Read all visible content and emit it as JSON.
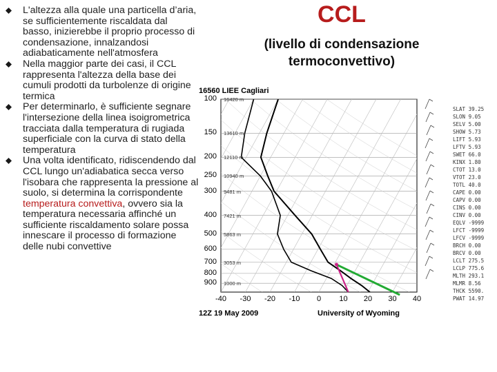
{
  "slide": {
    "title": "CCL",
    "subtitle_line1": "(livello di condensazione",
    "subtitle_line2": "termoconvettivo)",
    "bullets": [
      "L'altezza alla quale una particella d’aria, se sufficientemente riscaldata dal basso, inizierebbe il proprio processo di condensazione, innalzandosi adiabaticamente nell'atmosfera",
      "Nella maggior parte dei casi, il CCL rappresenta l'altezza della base dei cumuli prodotti da turbolenze di origine termica",
      "Per determinarlo, è sufficiente segnare l'intersezione della linea isoigrometrica tracciata dalla temperatura di rugiada superficiale con la curva di stato della temperatura"
    ],
    "bullet4_before": "Una volta identificato, ridiscendendo dal CCL lungo un'adiabatica secca verso l'isobara che rappresenta la pressione al suolo, si determina la corrispondente ",
    "bullet4_highlight": "temperatura convettiva",
    "bullet4_after": ", ovvero sia la temperatura necessaria affinché un sufficiente riscaldamento solare possa innescare il processo di formazione delle nubi convettive",
    "colors": {
      "title": "#b71c1c",
      "highlight": "#b71c1c",
      "bullet": "#1a1a1a",
      "dry_adiabat": "#22aa33",
      "parcel": "#cc2288"
    }
  },
  "chart_data": {
    "type": "line",
    "title": "16560 LIEE Cagliari",
    "footer_left": "12Z 19 May 2009",
    "footer_right": "University of Wyoming",
    "pressure_ticks": [
      "100",
      "150",
      "200",
      "250",
      "300",
      "400",
      "500",
      "600",
      "700",
      "800",
      "900"
    ],
    "temperature_ticks": [
      "-40",
      "-30",
      "-20",
      "-10",
      "0",
      "10",
      "20",
      "30",
      "40"
    ],
    "xlim": [
      -40,
      40
    ],
    "height_labels": [
      "16420 m",
      "13610 m",
      "12110 m",
      "10940 m",
      "9481 m",
      "7421 m",
      "5863 m",
      "3053 m",
      "1000 m"
    ],
    "index_labels": [
      "SLAT 39.25",
      "SLON 9.05",
      "SELV 5.00",
      "SHOW 5.73",
      "LIFT 5.93",
      "LFTV 5.93",
      "SWET 66.0",
      "KINX 1.80",
      "CTOT 13.0",
      "VTOT 23.0",
      "TOTL 40.0",
      "CAPE 0.00",
      "CAPV 0.00",
      "CINS 0.00",
      "CINV 0.00",
      "EQLV -9999",
      "LFCT -9999",
      "LFCV -9999",
      "BRCH 0.00",
      "BRCV 0.00",
      "LCLT 275.5",
      "LCLP 775.6",
      "MLTH 293.1",
      "MLMR 8.56",
      "THCK 5590.",
      "PWAT 14.97"
    ],
    "temperature_profile": [
      {
        "p": 1000,
        "t": 20.8
      },
      {
        "p": 925,
        "t": 16
      },
      {
        "p": 850,
        "t": 10
      },
      {
        "p": 775,
        "t": 4
      },
      {
        "p": 700,
        "t": -3
      },
      {
        "p": 600,
        "t": -9
      },
      {
        "p": 500,
        "t": -16
      },
      {
        "p": 400,
        "t": -27
      },
      {
        "p": 300,
        "t": -41
      },
      {
        "p": 250,
        "t": -47
      },
      {
        "p": 200,
        "t": -54
      },
      {
        "p": 150,
        "t": -57
      },
      {
        "p": 100,
        "t": -60
      }
    ],
    "dewpoint_profile": [
      {
        "p": 1000,
        "t": 12
      },
      {
        "p": 925,
        "t": 8
      },
      {
        "p": 850,
        "t": 2
      },
      {
        "p": 775,
        "t": -8
      },
      {
        "p": 700,
        "t": -18
      },
      {
        "p": 600,
        "t": -24
      },
      {
        "p": 500,
        "t": -30
      },
      {
        "p": 400,
        "t": -33
      },
      {
        "p": 300,
        "t": -42
      },
      {
        "p": 250,
        "t": -50
      },
      {
        "p": 200,
        "t": -62
      },
      {
        "p": 150,
        "t": -66
      },
      {
        "p": 100,
        "t": -70
      }
    ]
  }
}
